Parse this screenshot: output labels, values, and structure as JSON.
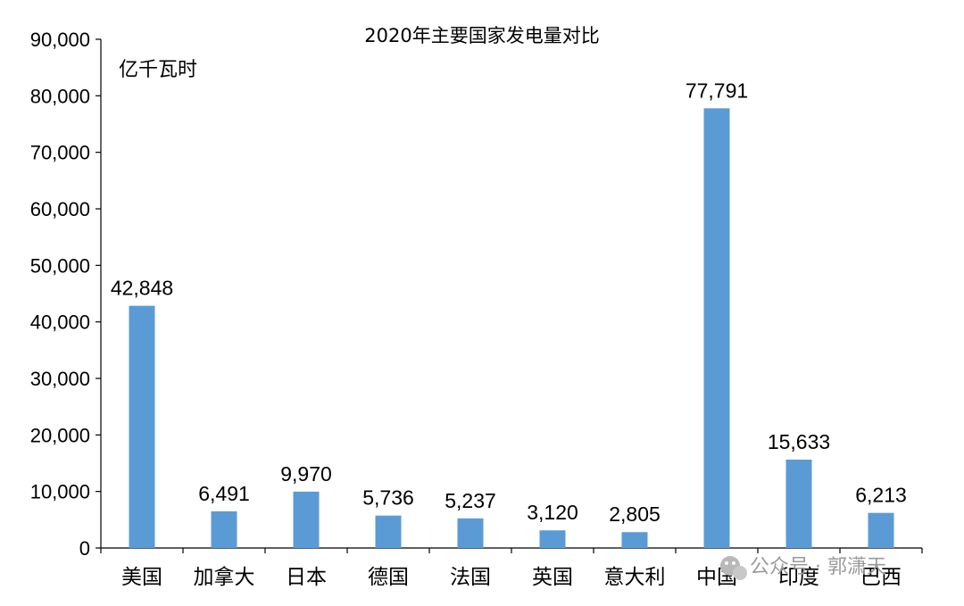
{
  "chart_data": {
    "type": "bar",
    "title": "2020年主要国家发电量对比",
    "ylabel": "亿千瓦时",
    "categories": [
      "美国",
      "加拿大",
      "日本",
      "德国",
      "法国",
      "英国",
      "意大利",
      "中国",
      "印度",
      "巴西"
    ],
    "values": [
      42848,
      6491,
      9970,
      5736,
      5237,
      3120,
      2805,
      77791,
      15633,
      6213
    ],
    "data_labels": [
      "42,848",
      "6,491",
      "9,970",
      "5,736",
      "5,237",
      "3,120",
      "2,805",
      "77,791",
      "15,633",
      "6,213"
    ],
    "ylim": [
      0,
      90000
    ],
    "yticks": [
      0,
      10000,
      20000,
      30000,
      40000,
      50000,
      60000,
      70000,
      80000,
      90000
    ],
    "ytick_labels": [
      "0",
      "10,000",
      "20,000",
      "30,000",
      "40,000",
      "50,000",
      "60,000",
      "70,000",
      "80,000",
      "90,000"
    ],
    "bar_color": "#5b9bd5",
    "grid": false,
    "legend": "none"
  },
  "watermark": {
    "text": "公众号 · 郭潇天",
    "icon": "wechat-icon"
  }
}
